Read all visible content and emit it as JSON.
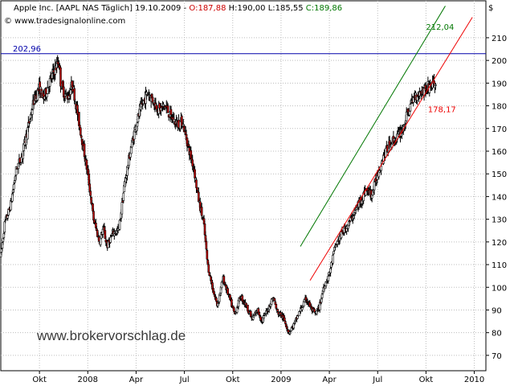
{
  "header": {
    "symbol": "Apple Inc. [AAPL NAS  Täglich] 19.10.2009 - ",
    "open_label": "O:187,88",
    "high_label": " H:190,00",
    "low_label": " L:185,55",
    "close_label": " C:189,86",
    "copyright": "© www.tradesignalonline.com"
  },
  "watermark": "www.brokervorschlag.de",
  "currency_symbol": "$",
  "chart_data": {
    "type": "candlestick",
    "y_ticks": [
      70,
      80,
      90,
      100,
      110,
      120,
      130,
      140,
      150,
      160,
      170,
      180,
      190,
      200,
      210
    ],
    "ylim": [
      65,
      216
    ],
    "x_ticks": [
      {
        "label": "Okt",
        "t": 2007.75
      },
      {
        "label": "2008",
        "t": 2008.0
      },
      {
        "label": "Apr",
        "t": 2008.25
      },
      {
        "label": "Jul",
        "t": 2008.5
      },
      {
        "label": "Okt",
        "t": 2008.75
      },
      {
        "label": "2009",
        "t": 2009.0
      },
      {
        "label": "Apr",
        "t": 2009.25
      },
      {
        "label": "Jul",
        "t": 2009.5
      },
      {
        "label": "Okt",
        "t": 2009.75
      },
      {
        "label": "2010",
        "t": 2010.0
      }
    ],
    "xlim": [
      2007.55,
      2010.06
    ],
    "colors": {
      "up": "#ffffff",
      "down": "#cc0000",
      "wick": "#000000"
    },
    "path": [
      [
        2007.55,
        114
      ],
      [
        2007.57,
        128
      ],
      [
        2007.6,
        136
      ],
      [
        2007.63,
        152
      ],
      [
        2007.66,
        158
      ],
      [
        2007.69,
        170
      ],
      [
        2007.72,
        182
      ],
      [
        2007.75,
        188
      ],
      [
        2007.77,
        183
      ],
      [
        2007.8,
        190
      ],
      [
        2007.83,
        196
      ],
      [
        2007.85,
        200
      ],
      [
        2007.86,
        190
      ],
      [
        2007.88,
        185
      ],
      [
        2007.9,
        184
      ],
      [
        2007.92,
        190
      ],
      [
        2007.94,
        180
      ],
      [
        2007.96,
        170
      ],
      [
        2007.98,
        160
      ],
      [
        2008.0,
        150
      ],
      [
        2008.03,
        130
      ],
      [
        2008.06,
        120
      ],
      [
        2008.08,
        126
      ],
      [
        2008.1,
        118
      ],
      [
        2008.13,
        124
      ],
      [
        2008.16,
        125
      ],
      [
        2008.19,
        145
      ],
      [
        2008.22,
        160
      ],
      [
        2008.25,
        172
      ],
      [
        2008.28,
        180
      ],
      [
        2008.31,
        186
      ],
      [
        2008.34,
        182
      ],
      [
        2008.37,
        178
      ],
      [
        2008.4,
        180
      ],
      [
        2008.43,
        175
      ],
      [
        2008.46,
        172
      ],
      [
        2008.49,
        173
      ],
      [
        2008.52,
        162
      ],
      [
        2008.55,
        152
      ],
      [
        2008.57,
        140
      ],
      [
        2008.6,
        128
      ],
      [
        2008.62,
        110
      ],
      [
        2008.65,
        98
      ],
      [
        2008.67,
        92
      ],
      [
        2008.7,
        104
      ],
      [
        2008.73,
        96
      ],
      [
        2008.76,
        88
      ],
      [
        2008.79,
        96
      ],
      [
        2008.82,
        92
      ],
      [
        2008.85,
        86
      ],
      [
        2008.88,
        90
      ],
      [
        2008.9,
        85
      ],
      [
        2008.93,
        90
      ],
      [
        2008.96,
        96
      ],
      [
        2008.98,
        89
      ],
      [
        2009.0,
        88
      ],
      [
        2009.02,
        85
      ],
      [
        2009.04,
        80
      ],
      [
        2009.07,
        84
      ],
      [
        2009.1,
        90
      ],
      [
        2009.13,
        95
      ],
      [
        2009.16,
        90
      ],
      [
        2009.18,
        88
      ],
      [
        2009.2,
        92
      ],
      [
        2009.22,
        100
      ],
      [
        2009.25,
        106
      ],
      [
        2009.28,
        118
      ],
      [
        2009.31,
        123
      ],
      [
        2009.35,
        128
      ],
      [
        2009.38,
        133
      ],
      [
        2009.41,
        138
      ],
      [
        2009.44,
        143
      ],
      [
        2009.47,
        141
      ],
      [
        2009.5,
        150
      ],
      [
        2009.53,
        158
      ],
      [
        2009.57,
        164
      ],
      [
        2009.6,
        166
      ],
      [
        2009.63,
        170
      ],
      [
        2009.66,
        178
      ],
      [
        2009.69,
        184
      ],
      [
        2009.72,
        186
      ],
      [
        2009.75,
        188
      ],
      [
        2009.8,
        189.86
      ]
    ],
    "horizontal_line": {
      "value": 202.96,
      "label": "202,96",
      "color": "#0000aa"
    },
    "trend_lines": [
      {
        "label": "212,04",
        "color": "#007700",
        "from": [
          2009.1,
          118
        ],
        "to": [
          2009.85,
          224
        ]
      },
      {
        "label": "178,17",
        "color": "#ee0000",
        "from": [
          2009.15,
          103
        ],
        "to": [
          2009.99,
          219
        ]
      }
    ]
  }
}
